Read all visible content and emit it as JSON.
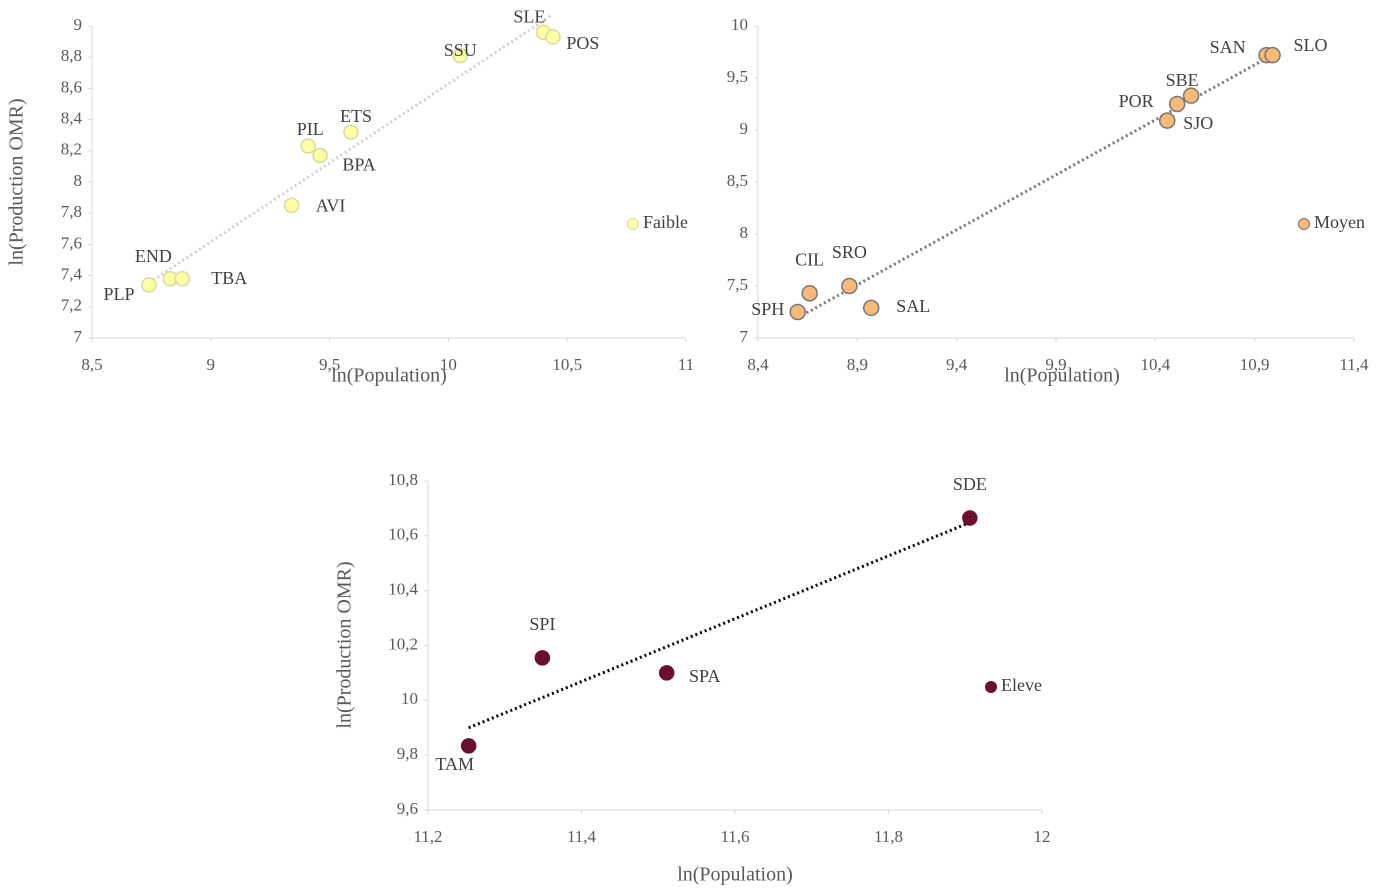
{
  "chart_data": [
    {
      "type": "scatter",
      "x_label": "ln(Population)",
      "y_label": "ln(Production OMR)",
      "xlim": [
        8.5,
        11
      ],
      "ylim": [
        7,
        9
      ],
      "xticks": [
        {
          "value": 8.5,
          "label": "8,5"
        },
        9,
        {
          "value": 9.5,
          "label": "9,5"
        },
        10,
        {
          "value": 10.5,
          "label": "10,5"
        },
        11
      ],
      "yticks": [
        7,
        {
          "value": 7.2,
          "label": "7,2"
        },
        {
          "value": 7.4,
          "label": "7,4"
        },
        {
          "value": 7.6,
          "label": "7,6"
        },
        {
          "value": 7.8,
          "label": "7,8"
        },
        8,
        {
          "value": 8.2,
          "label": "8,2"
        },
        {
          "value": 8.4,
          "label": "8,4"
        },
        {
          "value": 8.6,
          "label": "8,6"
        },
        {
          "value": 8.8,
          "label": "8,8"
        },
        9
      ],
      "trendline": true,
      "trendline_color": "#cfcfcf",
      "series": [
        {
          "name": "Faible",
          "color": "#ffffa6",
          "stroke": "#d9d9a0",
          "labels": [
            "SLE",
            "POS",
            "SSU",
            "ETS",
            "PIL",
            "BPA",
            "AVI",
            "END",
            "TBA",
            "PLP"
          ],
          "x": [
            10.4,
            10.44,
            10.05,
            9.59,
            9.41,
            9.46,
            9.34,
            8.83,
            8.88,
            8.74
          ],
          "y": [
            8.96,
            8.93,
            8.81,
            8.32,
            8.23,
            8.17,
            7.85,
            7.38,
            7.38,
            7.34
          ]
        }
      ]
    },
    {
      "type": "scatter",
      "x_label": "ln(Population)",
      "xlim": [
        8.4,
        11.4
      ],
      "ylim": [
        7,
        10
      ],
      "xticks": [
        {
          "value": 8.4,
          "label": "8,4"
        },
        {
          "value": 8.9,
          "label": "8,9"
        },
        {
          "value": 9.4,
          "label": "9,4"
        },
        {
          "value": 9.9,
          "label": "9,9"
        },
        {
          "value": 10.4,
          "label": "10,4"
        },
        {
          "value": 10.9,
          "label": "10,9"
        },
        {
          "value": 11.4,
          "label": "11,4"
        }
      ],
      "yticks": [
        7,
        {
          "value": 7.5,
          "label": "7,5"
        },
        8,
        {
          "value": 8.5,
          "label": "8,5"
        },
        9,
        {
          "value": 9.5,
          "label": "9,5"
        },
        10
      ],
      "trendline": true,
      "trendline_color": "#767676",
      "series": [
        {
          "name": "Moyen",
          "color": "#f9b978",
          "stroke": "#767676",
          "labels": [
            "SAN",
            "SLO",
            "SBE",
            "POR",
            "SJO",
            "CIL",
            "SRO",
            "SAL",
            "SPH"
          ],
          "x": [
            10.96,
            10.99,
            10.58,
            10.51,
            10.46,
            8.66,
            8.86,
            8.97,
            8.6
          ],
          "y": [
            9.72,
            9.72,
            9.33,
            9.25,
            9.09,
            7.43,
            7.5,
            7.29,
            7.25
          ]
        }
      ]
    },
    {
      "type": "scatter",
      "x_label": "ln(Population)",
      "y_label": "ln(Production OMR)",
      "xlim": [
        11.2,
        12
      ],
      "ylim": [
        9.6,
        10.8
      ],
      "xticks": [
        {
          "value": 11.2,
          "label": "11,2"
        },
        {
          "value": 11.4,
          "label": "11,4"
        },
        {
          "value": 11.6,
          "label": "11,6"
        },
        {
          "value": 11.8,
          "label": "11,8"
        },
        12
      ],
      "yticks": [
        {
          "value": 9.6,
          "label": "9,6"
        },
        {
          "value": 9.8,
          "label": "9,8"
        },
        10,
        {
          "value": 10.2,
          "label": "10,2"
        },
        {
          "value": 10.4,
          "label": "10,4"
        },
        {
          "value": 10.6,
          "label": "10,6"
        },
        {
          "value": 10.8,
          "label": "10,8"
        }
      ],
      "trendline": true,
      "trendline_color": "#000000",
      "series": [
        {
          "name": "Eleve",
          "color": "#6b0f2e",
          "stroke": "#6b0f2e",
          "labels": [
            "SDE",
            "SPI",
            "SPA",
            "TAM"
          ],
          "x": [
            11.906,
            11.349,
            11.511,
            11.253
          ],
          "y": [
            10.665,
            10.155,
            10.1,
            9.834
          ]
        }
      ]
    }
  ]
}
